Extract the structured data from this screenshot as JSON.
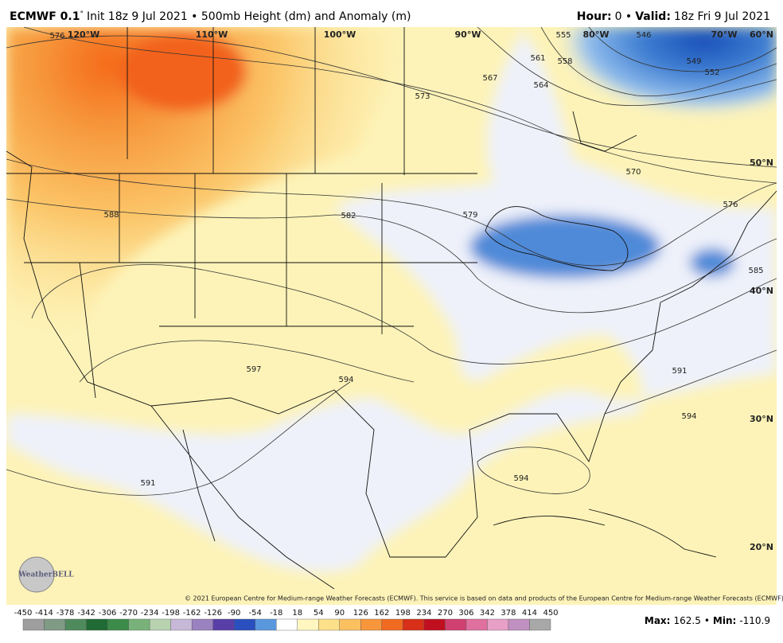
{
  "header": {
    "title_bold": "ECMWF 0.1",
    "degree": "°",
    "title_rest": "Init 18z 9 Jul 2021 • 500mb Height (dm) and Anomaly (m)",
    "hour_label": "Hour:",
    "hour_value": "0 •",
    "valid_label": "Valid:",
    "valid_value": "18z Fri 9 Jul 2021"
  },
  "map": {
    "lon_labels": [
      "120°W",
      "110°W",
      "100°W",
      "90°W",
      "80°W",
      "70°W"
    ],
    "lat_labels": [
      "60°N",
      "50°N",
      "40°N",
      "30°N",
      "20°N"
    ],
    "contour_labels": [
      576,
      573,
      567,
      564,
      561,
      558,
      555,
      546,
      549,
      552,
      570,
      579,
      582,
      588,
      597,
      594,
      591,
      594,
      591,
      594,
      576,
      585
    ],
    "logo": "WeatherBELL",
    "copyright": "© 2021 European Centre for Medium-range Weather Forecasts (ECMWF). This service is based on data and products of the European Centre for Medium-range Weather Forecasts (ECMWF)."
  },
  "colorbar": {
    "ticks": [
      -450,
      -414,
      -378,
      -342,
      -306,
      -270,
      -234,
      -198,
      -162,
      -126,
      -90,
      -54,
      -18,
      18,
      54,
      90,
      126,
      162,
      198,
      234,
      270,
      306,
      342,
      378,
      414,
      450
    ],
    "colors": [
      "#9e9e9e",
      "#7f9a85",
      "#4f8a5c",
      "#1f6b33",
      "#3d8b4b",
      "#78b27a",
      "#b8d2b0",
      "#c8b8d8",
      "#9a82c0",
      "#5a3ea8",
      "#2a50c0",
      "#5a98de",
      "#ffffff",
      "#fff6c0",
      "#fde08a",
      "#fbc060",
      "#f8963c",
      "#f06a20",
      "#d83018",
      "#c01020",
      "#d04070",
      "#e070a0",
      "#e8a0c8",
      "#c090c0",
      "#a8a8a8"
    ]
  },
  "footer": {
    "max_label": "Max:",
    "max_value": 162.5,
    "separator": "•",
    "min_label": "Min:",
    "min_value": -110.9
  }
}
